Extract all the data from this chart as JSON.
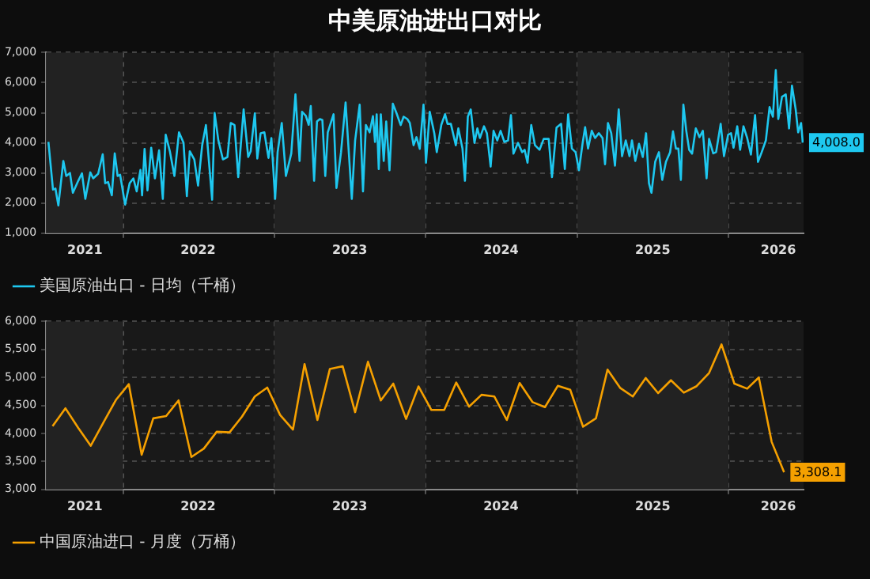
{
  "chart_data": [
    {
      "type": "line",
      "title": "中美原油进出口对比",
      "xlim": [
        "2021-06-29",
        "2026-07-01"
      ],
      "xticks": [
        {
          "value": "2021-10-01",
          "label": "2021"
        },
        {
          "value": "2022-01-01",
          "label": null
        },
        {
          "value": "2022-07-01",
          "label": "2022"
        },
        {
          "value": "2023-01-01",
          "label": null
        },
        {
          "value": "2023-07-02",
          "label": "2023"
        },
        {
          "value": "2024-01-01",
          "label": null
        },
        {
          "value": "2024-07-01",
          "label": "2024"
        },
        {
          "value": "2025-01-01",
          "label": null
        },
        {
          "value": "2025-07-02",
          "label": "2025"
        },
        {
          "value": "2026-01-01",
          "label": null
        },
        {
          "value": "2026-05-01",
          "label": "2026"
        }
      ],
      "ylim": [
        1000,
        7000
      ],
      "yticks": [
        {
          "value": 1000,
          "label": "1,000"
        },
        {
          "value": 2000,
          "label": "2,000"
        },
        {
          "value": 3000,
          "label": "3,000"
        },
        {
          "value": 4000,
          "label": "4,000"
        },
        {
          "value": 5000,
          "label": "5,000"
        },
        {
          "value": 6000,
          "label": "6,000"
        },
        {
          "value": 7000,
          "label": "7,000"
        }
      ],
      "grid": true,
      "legend": "bottom left",
      "marker": "none",
      "line_style": "solid",
      "bands": [
        {
          "axis": "x",
          "from": "2021-06-29",
          "to": "2022-01-01",
          "color": "#222222"
        },
        {
          "axis": "x",
          "from": "2023-01-01",
          "to": "2024-01-01",
          "color": "#222222"
        },
        {
          "axis": "x",
          "from": "2025-01-01",
          "to": "2026-01-01",
          "color": "#222222"
        }
      ],
      "series": [
        {
          "name": "美国原油出口 - 日均（千桶）",
          "color": "#1ec8f0",
          "x": [
            "2021-07-05",
            "2021-07-16",
            "2021-07-22",
            "2021-07-29",
            "2021-08-10",
            "2021-08-17",
            "2021-08-26",
            "2021-09-02",
            "2021-09-15",
            "2021-09-24",
            "2021-10-02",
            "2021-10-14",
            "2021-10-21",
            "2021-11-02",
            "2021-11-13",
            "2021-11-19",
            "2021-11-26",
            "2021-12-05",
            "2021-12-12",
            "2021-12-19",
            "2021-12-25",
            "2022-01-06",
            "2022-01-17",
            "2022-01-26",
            "2022-02-03",
            "2022-02-12",
            "2022-02-16",
            "2022-02-22",
            "2022-03-01",
            "2022-03-10",
            "2022-03-19",
            "2022-03-29",
            "2022-04-07",
            "2022-04-14",
            "2022-04-24",
            "2022-05-05",
            "2022-05-16",
            "2022-05-27",
            "2022-06-04",
            "2022-06-11",
            "2022-06-22",
            "2022-07-01",
            "2022-07-11",
            "2022-07-20",
            "2022-08-04",
            "2022-08-10",
            "2022-08-19",
            "2022-08-30",
            "2022-09-10",
            "2022-09-18",
            "2022-09-27",
            "2022-10-06",
            "2022-10-19",
            "2022-10-30",
            "2022-11-05",
            "2022-11-15",
            "2022-11-21",
            "2022-11-29",
            "2022-12-08",
            "2022-12-18",
            "2022-12-25",
            "2023-01-03",
            "2023-01-09",
            "2023-01-19",
            "2023-01-29",
            "2023-02-11",
            "2023-02-21",
            "2023-03-03",
            "2023-03-09",
            "2023-03-18",
            "2023-03-25",
            "2023-03-30",
            "2023-04-07",
            "2023-04-14",
            "2023-04-21",
            "2023-04-27",
            "2023-05-04",
            "2023-05-10",
            "2023-05-24",
            "2023-05-31",
            "2023-06-11",
            "2023-06-22",
            "2023-07-07",
            "2023-07-15",
            "2023-07-26",
            "2023-08-03",
            "2023-08-10",
            "2023-08-19",
            "2023-08-27",
            "2023-09-01",
            "2023-09-05",
            "2023-09-10",
            "2023-09-15",
            "2023-09-22",
            "2023-09-28",
            "2023-10-06",
            "2023-10-14",
            "2023-10-23",
            "2023-11-02",
            "2023-11-09",
            "2023-11-18",
            "2023-11-24",
            "2023-12-03",
            "2023-12-10",
            "2023-12-18",
            "2023-12-27",
            "2024-01-02",
            "2024-01-11",
            "2024-01-22",
            "2024-01-28",
            "2024-02-08",
            "2024-02-17",
            "2024-02-23",
            "2024-03-02",
            "2024-03-14",
            "2024-03-20",
            "2024-03-30",
            "2024-04-05",
            "2024-04-12",
            "2024-04-19",
            "2024-04-28",
            "2024-05-05",
            "2024-05-11",
            "2024-05-21",
            "2024-05-28",
            "2024-06-06",
            "2024-06-13",
            "2024-06-22",
            "2024-06-30",
            "2024-07-09",
            "2024-07-18",
            "2024-07-25",
            "2024-07-31",
            "2024-08-11",
            "2024-08-21",
            "2024-08-27",
            "2024-09-03",
            "2024-09-12",
            "2024-09-21",
            "2024-10-02",
            "2024-10-12",
            "2024-10-24",
            "2024-11-01",
            "2024-11-12",
            "2024-11-23",
            "2024-12-02",
            "2024-12-10",
            "2024-12-19",
            "2024-12-28",
            "2025-01-05",
            "2025-01-14",
            "2025-01-20",
            "2025-01-27",
            "2025-02-05",
            "2025-02-13",
            "2025-02-22",
            "2025-03-03",
            "2025-03-09",
            "2025-03-16",
            "2025-03-24",
            "2025-04-02",
            "2025-04-11",
            "2025-04-19",
            "2025-04-28",
            "2025-05-07",
            "2025-05-13",
            "2025-05-21",
            "2025-05-30",
            "2025-06-08",
            "2025-06-16",
            "2025-06-23",
            "2025-06-29",
            "2025-07-08",
            "2025-07-17",
            "2025-07-25",
            "2025-08-03",
            "2025-08-13",
            "2025-08-20",
            "2025-08-27",
            "2025-09-02",
            "2025-09-08",
            "2025-09-14",
            "2025-09-21",
            "2025-09-28",
            "2025-10-05",
            "2025-10-14",
            "2025-10-23",
            "2025-10-31",
            "2025-11-09",
            "2025-11-15",
            "2025-11-25",
            "2025-12-02",
            "2025-12-13",
            "2025-12-21",
            "2025-12-31",
            "2026-01-07",
            "2026-01-13",
            "2026-01-22",
            "2026-01-29",
            "2026-02-06",
            "2026-02-15",
            "2026-02-24",
            "2026-03-06",
            "2026-03-13",
            "2026-03-22",
            "2026-04-01",
            "2026-04-10",
            "2026-04-18",
            "2026-04-25",
            "2026-05-01",
            "2026-05-10",
            "2026-05-19",
            "2026-05-27",
            "2026-06-03",
            "2026-06-12",
            "2026-06-18",
            "2026-06-25",
            "2026-06-29"
          ],
          "values": [
            4030,
            2450,
            2480,
            1920,
            3400,
            2900,
            3000,
            2340,
            2740,
            2990,
            2140,
            3020,
            2820,
            2970,
            3620,
            2660,
            2700,
            2260,
            3650,
            2900,
            2940,
            1950,
            2660,
            2820,
            2390,
            3100,
            2260,
            3800,
            2420,
            3840,
            2820,
            3750,
            2140,
            4270,
            3720,
            2900,
            4350,
            4000,
            2230,
            3720,
            3450,
            2580,
            3920,
            4590,
            2110,
            4990,
            4080,
            3450,
            3530,
            4660,
            4590,
            2860,
            5110,
            3530,
            3720,
            4980,
            3480,
            4320,
            4350,
            3500,
            4160,
            2140,
            3690,
            4660,
            2900,
            3650,
            5610,
            3400,
            5030,
            4900,
            4600,
            5220,
            2740,
            4710,
            4790,
            4760,
            2900,
            4350,
            4950,
            2500,
            3690,
            5340,
            2140,
            4080,
            5270,
            2390,
            4590,
            4350,
            4890,
            4030,
            4950,
            3130,
            4950,
            3400,
            4710,
            3090,
            5300,
            4980,
            4590,
            4870,
            4790,
            4660,
            3920,
            4190,
            3800,
            5270,
            3340,
            5030,
            4320,
            3690,
            4600,
            4950,
            4630,
            4630,
            3920,
            4480,
            3810,
            2740,
            4870,
            5110,
            4000,
            4480,
            4160,
            4550,
            4320,
            3210,
            4400,
            4080,
            4400,
            4030,
            4080,
            4920,
            3640,
            4000,
            3690,
            3770,
            3340,
            4590,
            3920,
            3770,
            4130,
            4130,
            2860,
            4510,
            4630,
            3130,
            4950,
            3810,
            3690,
            3090,
            4000,
            4520,
            3810,
            4400,
            4160,
            4320,
            4160,
            3290,
            4660,
            4320,
            3240,
            5110,
            3560,
            4080,
            3560,
            4080,
            3400,
            3970,
            3530,
            4320,
            2660,
            2340,
            3370,
            3690,
            2770,
            3370,
            3690,
            4380,
            3810,
            3810,
            2770,
            5270,
            4400,
            3770,
            3640,
            4480,
            4190,
            4400,
            2820,
            4130,
            3650,
            3690,
            4630,
            3560,
            4270,
            4320,
            3840,
            4550,
            3770,
            4550,
            4160,
            3610,
            4920,
            3370,
            3690,
            4080,
            5190,
            4870,
            6420,
            4790,
            5530,
            5610,
            4480,
            5900,
            5110,
            4350,
            4660,
            4008
          ],
          "value_labels": [
            null,
            null,
            null,
            null,
            null,
            null,
            null,
            null,
            null,
            null,
            null,
            null,
            null,
            null,
            null,
            null,
            null,
            null,
            null,
            null,
            null,
            null,
            null,
            null,
            null,
            null,
            null,
            null,
            null,
            null,
            null,
            null,
            null,
            null,
            null,
            null,
            null,
            null,
            null,
            null,
            null,
            null,
            null,
            null,
            null,
            null,
            null,
            null,
            null,
            null,
            null,
            null,
            null,
            null,
            null,
            null,
            null,
            null,
            null,
            null,
            null,
            null,
            null,
            null,
            null,
            null,
            null,
            null,
            null,
            null,
            null,
            null,
            null,
            null,
            null,
            null,
            null,
            null,
            null,
            null,
            null,
            null,
            null,
            null,
            null,
            null,
            null,
            null,
            null,
            null,
            null,
            null,
            null,
            null,
            null,
            null,
            null,
            null,
            null,
            null,
            null,
            null,
            null,
            null,
            null,
            null,
            null,
            null,
            null,
            null,
            null,
            null,
            null,
            null,
            null,
            null,
            null,
            null,
            null,
            null,
            null,
            null,
            null,
            null,
            null,
            null,
            null,
            null,
            null,
            null,
            null,
            null,
            null,
            null,
            null,
            null,
            null,
            null,
            null,
            null,
            null,
            null,
            null,
            null,
            null,
            null,
            null,
            null,
            null,
            null,
            null,
            null,
            null,
            null,
            null,
            null,
            null,
            null,
            null,
            null,
            null,
            null,
            null,
            null,
            null,
            null,
            null,
            null,
            null,
            null,
            null,
            null,
            null,
            null,
            null,
            null,
            null,
            null,
            null,
            null,
            null,
            null,
            null,
            null,
            null,
            null,
            null,
            null,
            null,
            null,
            null,
            null,
            null,
            null,
            null,
            null,
            null,
            null,
            null,
            null,
            null,
            null,
            null,
            null,
            null,
            null,
            null,
            null,
            null,
            null,
            null,
            null,
            null,
            null,
            null,
            null,
            null,
            "4,008.0"
          ]
        }
      ]
    },
    {
      "type": "line",
      "xlim": [
        "2021-06-29",
        "2026-07-01"
      ],
      "xticks": [
        {
          "value": "2021-10-01",
          "label": "2021"
        },
        {
          "value": "2022-01-01",
          "label": null
        },
        {
          "value": "2022-07-01",
          "label": "2022"
        },
        {
          "value": "2023-01-01",
          "label": null
        },
        {
          "value": "2023-07-02",
          "label": "2023"
        },
        {
          "value": "2024-01-01",
          "label": null
        },
        {
          "value": "2024-07-01",
          "label": "2024"
        },
        {
          "value": "2025-01-01",
          "label": null
        },
        {
          "value": "2025-07-02",
          "label": "2025"
        },
        {
          "value": "2026-01-01",
          "label": null
        },
        {
          "value": "2026-05-01",
          "label": "2026"
        }
      ],
      "ylim": [
        3000,
        6000
      ],
      "yticks": [
        {
          "value": 3000,
          "label": "3,000"
        },
        {
          "value": 3500,
          "label": "3,500"
        },
        {
          "value": 4000,
          "label": "4,000"
        },
        {
          "value": 4500,
          "label": "4,500"
        },
        {
          "value": 5000,
          "label": "5,000"
        },
        {
          "value": 5500,
          "label": "5,500"
        },
        {
          "value": 6000,
          "label": "6,000"
        }
      ],
      "grid": true,
      "legend": "bottom left",
      "marker": "none",
      "line_style": "solid",
      "bands": [
        {
          "axis": "x",
          "from": "2021-06-29",
          "to": "2022-01-01",
          "color": "#222222"
        },
        {
          "axis": "x",
          "from": "2023-01-01",
          "to": "2024-01-01",
          "color": "#222222"
        },
        {
          "axis": "x",
          "from": "2025-01-01",
          "to": "2026-01-01",
          "color": "#222222"
        }
      ],
      "series": [
        {
          "name": "中国原油进口 - 月度（万桶）",
          "color": "#f5a000",
          "x": [
            "2021-07-15",
            "2021-08-15",
            "2021-09-15",
            "2021-10-15",
            "2021-11-15",
            "2021-12-15",
            "2022-01-15",
            "2022-02-15",
            "2022-03-15",
            "2022-04-15",
            "2022-05-15",
            "2022-06-15",
            "2022-07-15",
            "2022-08-15",
            "2022-09-15",
            "2022-10-15",
            "2022-11-15",
            "2022-12-15",
            "2023-01-15",
            "2023-02-15",
            "2023-03-15",
            "2023-04-15",
            "2023-05-15",
            "2023-06-15",
            "2023-07-15",
            "2023-08-15",
            "2023-09-15",
            "2023-10-15",
            "2023-11-15",
            "2023-12-15",
            "2024-01-15",
            "2024-02-15",
            "2024-03-15",
            "2024-04-15",
            "2024-05-15",
            "2024-06-15",
            "2024-07-15",
            "2024-08-15",
            "2024-09-15",
            "2024-10-15",
            "2024-11-15",
            "2024-12-15",
            "2025-01-15",
            "2025-02-15",
            "2025-03-15",
            "2025-04-15",
            "2025-05-15",
            "2025-06-15",
            "2025-07-15",
            "2025-08-15",
            "2025-09-15",
            "2025-10-15",
            "2025-11-15",
            "2025-12-15",
            "2026-01-15",
            "2026-02-15",
            "2026-03-15",
            "2026-04-15",
            "2026-05-15"
          ],
          "values": [
            4130,
            4450,
            4100,
            3780,
            4200,
            4600,
            4880,
            3620,
            4270,
            4310,
            4590,
            3580,
            3730,
            4030,
            4020,
            4300,
            4660,
            4820,
            4330,
            4070,
            5240,
            4240,
            5150,
            5200,
            4380,
            5280,
            4590,
            4890,
            4260,
            4840,
            4420,
            4420,
            4910,
            4480,
            4690,
            4660,
            4240,
            4900,
            4560,
            4470,
            4850,
            4780,
            4120,
            4270,
            5140,
            4810,
            4660,
            4990,
            4720,
            4950,
            4730,
            4840,
            5080,
            5590,
            4890,
            4800,
            5000,
            3850,
            3308.1
          ],
          "value_labels": [
            null,
            null,
            null,
            null,
            null,
            null,
            null,
            null,
            null,
            null,
            null,
            null,
            null,
            null,
            null,
            null,
            null,
            null,
            null,
            null,
            null,
            null,
            null,
            null,
            null,
            null,
            null,
            null,
            null,
            null,
            null,
            null,
            null,
            null,
            null,
            null,
            null,
            null,
            null,
            null,
            null,
            null,
            null,
            null,
            null,
            null,
            null,
            null,
            null,
            null,
            null,
            null,
            null,
            null,
            null,
            null,
            null,
            null,
            "3,308.1"
          ]
        }
      ]
    }
  ]
}
